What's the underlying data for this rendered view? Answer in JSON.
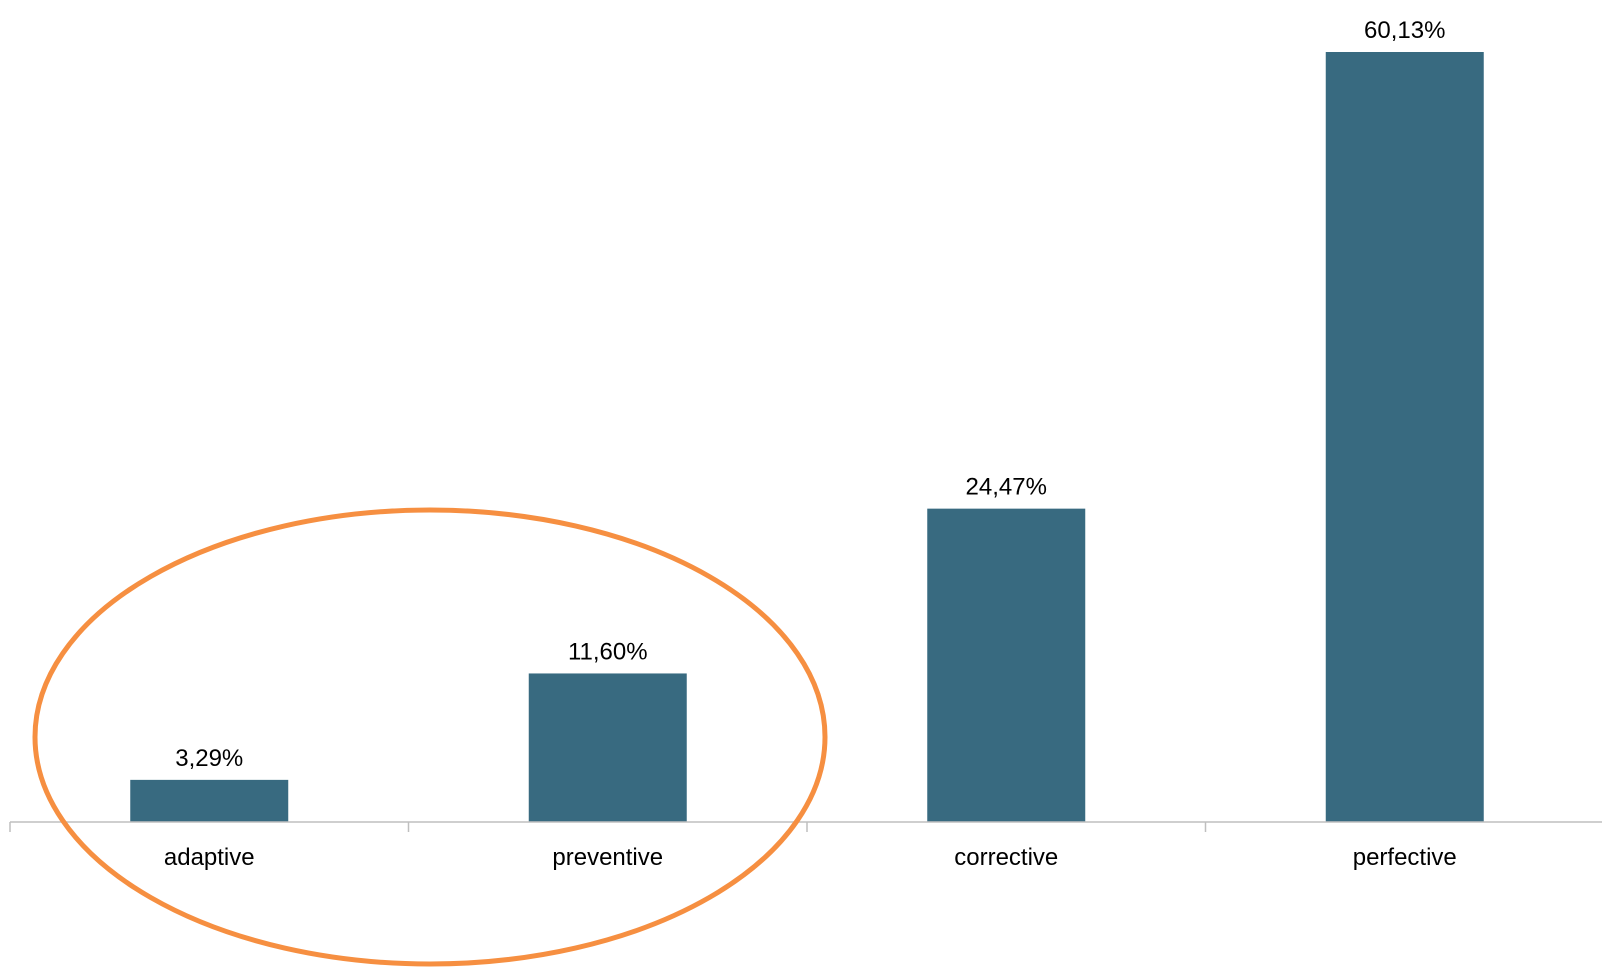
{
  "chart_data": {
    "type": "bar",
    "categories": [
      "adaptive",
      "preventive",
      "corrective",
      "perfective"
    ],
    "values": [
      3.29,
      11.6,
      24.47,
      60.13
    ],
    "value_labels": [
      "3,29%",
      "11,60%",
      "24,47%",
      "60,13%"
    ],
    "title": "",
    "xlabel": "",
    "ylabel": "",
    "ylim": [
      0,
      60.13
    ],
    "grid": false,
    "legend": "none",
    "bar_color": "#386a80",
    "axis_color": "#bfbfbf",
    "annotation": {
      "shape": "ellipse",
      "color": "#f68f41",
      "encircles": [
        "adaptive",
        "preventive"
      ]
    }
  }
}
